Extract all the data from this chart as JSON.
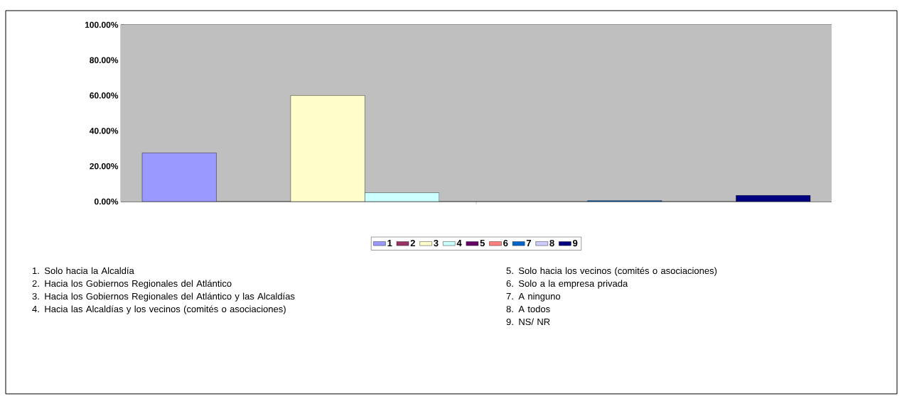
{
  "chart_data": {
    "type": "bar",
    "categories": [
      null
    ],
    "series": [
      {
        "name": "1",
        "color": "#9999ff",
        "values": [
          27.5
        ]
      },
      {
        "name": "2",
        "color": "#993366",
        "values": [
          0
        ]
      },
      {
        "name": "3",
        "color": "#ffffcc",
        "values": [
          60
        ]
      },
      {
        "name": "4",
        "color": "#ccffff",
        "values": [
          5
        ]
      },
      {
        "name": "5",
        "color": "#660066",
        "values": [
          0
        ]
      },
      {
        "name": "6",
        "color": "#ff8080",
        "values": [
          0
        ]
      },
      {
        "name": "7",
        "color": "#0066cc",
        "values": [
          0.5
        ]
      },
      {
        "name": "8",
        "color": "#ccccff",
        "values": [
          0
        ]
      },
      {
        "name": "9",
        "color": "#000080",
        "values": [
          3.5
        ]
      }
    ],
    "ylim": [
      0,
      100
    ],
    "yticks": [
      {
        "value": 0,
        "label": "0.00%"
      },
      {
        "value": 20,
        "label": "20.00%"
      },
      {
        "value": 40,
        "label": "40.00%"
      },
      {
        "value": 60,
        "label": "60.00%"
      },
      {
        "value": 80,
        "label": "80.00%"
      },
      {
        "value": 100,
        "label": "100.00%"
      }
    ],
    "grid": true,
    "legend": "bottom",
    "annotations": [
      "1. Solo hacia la Alcaldía",
      "2. Hacia los Gobiernos Regionales del Atlántico",
      "3. Hacia los Gobiernos Regionales del Atlántico y las Alcaldías",
      "4. Hacia las Alcaldías y los vecinos (comités o asociaciones)",
      "5. Solo hacia los vecinos (comités o asociaciones)",
      "6. Solo a la empresa privada",
      "7. A ninguno",
      "8. A todos",
      "9. NS/ NR"
    ]
  }
}
